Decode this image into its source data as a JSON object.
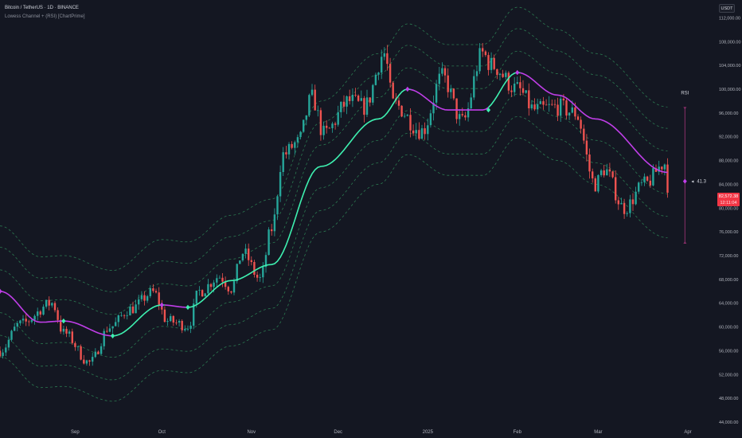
{
  "header": {
    "title": "Bitcoin / TetherUS · 1D · BINANCE",
    "indicator": "Lowess Channel + (RSI) [ChartPrime]"
  },
  "currency_button": "USDT",
  "last_price": {
    "value": "82,572.38",
    "countdown": "12:11:04"
  },
  "rsi": {
    "label": "RSI",
    "value": "41.3"
  },
  "colors": {
    "background": "#141722",
    "up": "#26a69a",
    "down": "#ef5350",
    "lowess_bull": "#3ef0b0",
    "lowess_bear": "#c03ee8",
    "band": "#2f8a58",
    "rsi_gauge": "#8a2f6a"
  },
  "chart_data": {
    "type": "candlestick",
    "title": "",
    "xlabel": "",
    "ylabel": "",
    "ylim": [
      44000,
      115000
    ],
    "grid": false,
    "y_ticks": [
      "112,000.00",
      "108,000.00",
      "104,000.00",
      "100,000.00",
      "96,000.00",
      "92,000.00",
      "88,000.00",
      "84,000.00",
      "80,000.00",
      "76,000.00",
      "72,000.00",
      "68,000.00",
      "64,000.00",
      "60,000.00",
      "56,000.00",
      "52,000.00",
      "48,000.00",
      "44,000.00"
    ],
    "x_ticks": [
      "Sep",
      "Oct",
      "Nov",
      "Dec",
      "2025",
      "Feb",
      "Mar",
      "Apr"
    ],
    "x_tick_dates": [
      "2024-09-01",
      "2024-10-01",
      "2024-11-01",
      "2024-12-01",
      "2025-01-01",
      "2025-02-01",
      "2025-03-01",
      "2025-04-01"
    ],
    "x_range": [
      "2024-08-06",
      "2025-04-09"
    ],
    "series_anchors": {
      "close_path": [
        [
          "2024-08-06",
          56000
        ],
        [
          "2024-08-13",
          60500
        ],
        [
          "2024-08-24",
          64000
        ],
        [
          "2024-08-28",
          59000
        ],
        [
          "2024-09-06",
          54000
        ],
        [
          "2024-09-13",
          60000
        ],
        [
          "2024-09-20",
          63000
        ],
        [
          "2024-09-28",
          65800
        ],
        [
          "2024-10-03",
          61000
        ],
        [
          "2024-10-10",
          60200
        ],
        [
          "2024-10-14",
          66000
        ],
        [
          "2024-10-21",
          68500
        ],
        [
          "2024-10-25",
          66500
        ],
        [
          "2024-10-29",
          72500
        ],
        [
          "2024-11-04",
          68000
        ],
        [
          "2024-11-08",
          76500
        ],
        [
          "2024-11-12",
          89000
        ],
        [
          "2024-11-17",
          91000
        ],
        [
          "2024-11-22",
          98500
        ],
        [
          "2024-11-26",
          92500
        ],
        [
          "2024-12-05",
          98000
        ],
        [
          "2024-12-10",
          97000
        ],
        [
          "2024-12-17",
          106000
        ],
        [
          "2024-12-20",
          97500
        ],
        [
          "2024-12-30",
          93000
        ],
        [
          "2025-01-06",
          102000
        ],
        [
          "2025-01-13",
          94500
        ],
        [
          "2025-01-20",
          106000
        ],
        [
          "2025-01-23",
          104000
        ],
        [
          "2025-02-01",
          100000
        ],
        [
          "2025-02-07",
          96500
        ],
        [
          "2025-02-15",
          97000
        ],
        [
          "2025-02-21",
          96000
        ],
        [
          "2025-02-28",
          84000
        ],
        [
          "2025-03-03",
          86500
        ],
        [
          "2025-03-10",
          80000
        ],
        [
          "2025-03-17",
          84000
        ],
        [
          "2025-03-24",
          87500
        ],
        [
          "2025-03-25",
          82572
        ]
      ],
      "lowess_center": [
        [
          "2024-08-06",
          66000
        ],
        [
          "2024-08-20",
          60800
        ],
        [
          "2024-08-28",
          61000
        ],
        [
          "2024-09-14",
          58500
        ],
        [
          "2024-10-01",
          63700
        ],
        [
          "2024-10-10",
          63300
        ],
        [
          "2024-10-25",
          67800
        ],
        [
          "2024-11-08",
          70500
        ],
        [
          "2024-11-25",
          87000
        ],
        [
          "2024-12-15",
          95000
        ],
        [
          "2024-12-25",
          100000
        ],
        [
          "2025-01-08",
          96500
        ],
        [
          "2025-01-20",
          96500
        ],
        [
          "2025-02-01",
          102800
        ],
        [
          "2025-02-15",
          99000
        ],
        [
          "2025-02-28",
          95000
        ],
        [
          "2025-03-25",
          86000
        ]
      ],
      "band_offsets": [
        3600,
        7400,
        11000
      ],
      "bull_ranges": [
        [
          "2024-09-14",
          "2024-10-01"
        ],
        [
          "2024-10-10",
          "2024-12-25"
        ],
        [
          "2025-01-22",
          "2025-02-01"
        ]
      ],
      "diamond_markers": [
        [
          "2024-08-06",
          66000,
          "bear"
        ],
        [
          "2024-08-28",
          61000,
          "bull"
        ],
        [
          "2024-09-14",
          58500,
          "bull"
        ],
        [
          "2024-10-01",
          63700,
          "bear"
        ],
        [
          "2024-10-10",
          63300,
          "bull"
        ],
        [
          "2024-12-25",
          100000,
          "bear"
        ],
        [
          "2025-01-22",
          96500,
          "bull"
        ],
        [
          "2025-02-01",
          102800,
          "bear"
        ]
      ]
    },
    "rsi_gauge": {
      "date": "2025-03-31",
      "top": 97000,
      "bottom": 74000,
      "value_price": 84500
    }
  }
}
